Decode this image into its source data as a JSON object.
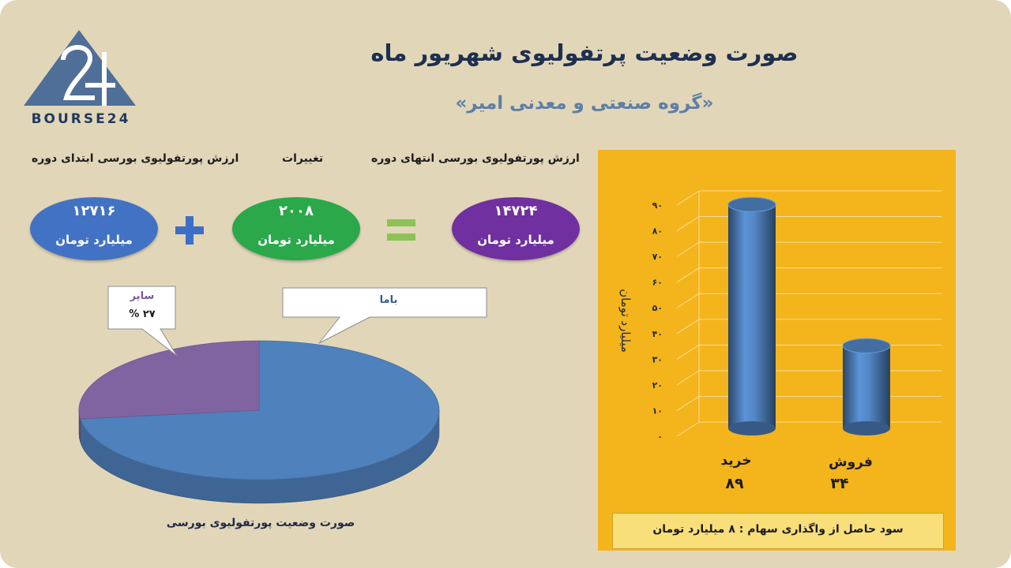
{
  "header": {
    "title": "صورت وضعیت پرتفولیوی شهریور ماه",
    "subtitle": "«گروه صنعتی و معدنی امیر»"
  },
  "logo": {
    "text": "BOURSE24",
    "mark": "24-triangle-logo"
  },
  "summary": {
    "start_label": "ارزش پورتفولیوی بورسی ابتدای دوره",
    "change_label": "تغییرات",
    "end_label": "ارزش پورتفولیوی بورسی انتهای دوره",
    "start_value": "۱۲۷۱۶",
    "change_value": "۲۰۰۸",
    "end_value": "۱۴۷۲۴",
    "unit": "میلیارد تومان",
    "plus_symbol": "+",
    "equals_symbol": "=",
    "colors": {
      "start": "#4272c4",
      "change": "#2aa84a",
      "end": "#7030a0",
      "plus": "#3d6fc6",
      "equals": "#8cc356"
    }
  },
  "chart_data": [
    {
      "type": "pie",
      "caption": "صورت وضعیت پورتفولیوی بورسی",
      "slices": [
        {
          "label": "باما",
          "value": 73,
          "color": "#4f81bd"
        },
        {
          "label": "سایر",
          "value": 27,
          "value_text": "۲۷ %",
          "color": "#8064a2"
        }
      ]
    },
    {
      "type": "bar",
      "categories": [
        "خرید",
        "فروش"
      ],
      "values": [
        89,
        34
      ],
      "value_labels": [
        "۸۹",
        "۳۴"
      ],
      "ylabel": "میلیارد تومان",
      "ylim": [
        0,
        90
      ],
      "yticks": [
        0,
        10,
        20,
        30,
        40,
        50,
        60,
        70,
        80,
        90
      ],
      "ytick_labels": [
        "۰",
        "۱۰",
        "۲۰",
        "۳۰",
        "۴۰",
        "۵۰",
        "۶۰",
        "۷۰",
        "۸۰",
        "۹۰"
      ],
      "grid": true,
      "bar_color": "#4f81bd",
      "background": "#f4b41c"
    }
  ],
  "footer": {
    "profit_text": "سود حاصل از واگذاری سهام :  ۸ میلیارد تومان"
  }
}
